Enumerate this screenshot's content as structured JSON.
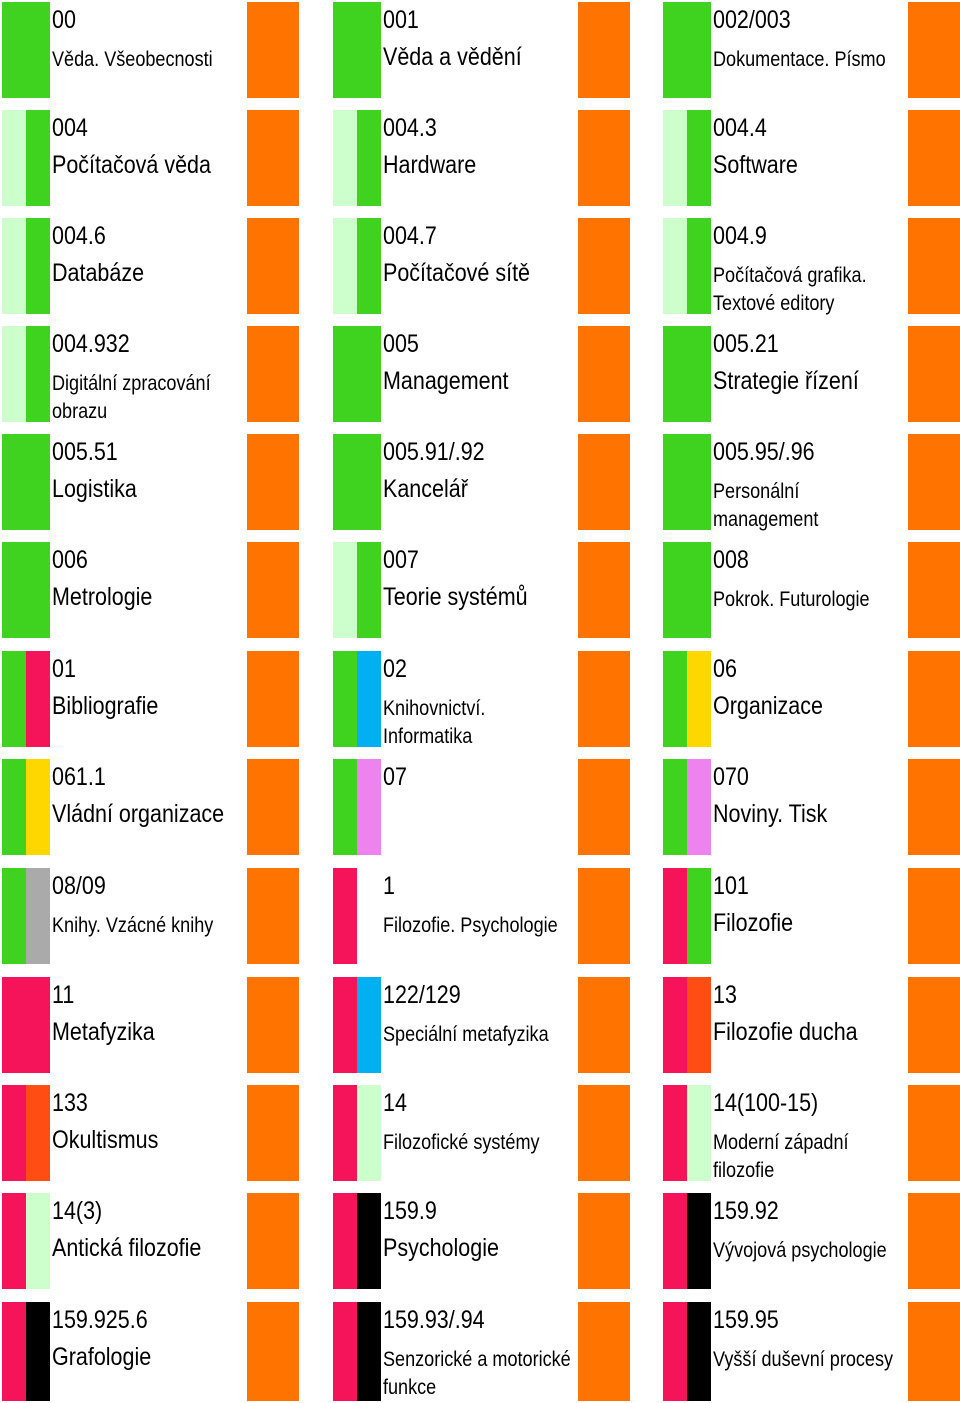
{
  "colors": {
    "green": "#3fd21e",
    "pale_green": "#ccffcc",
    "red": "#f5145a",
    "blue": "#00b0f0",
    "yellow": "#ffd700",
    "pink": "#ee82ee",
    "gray": "#aaaaaa",
    "black": "#000000",
    "orange": "#ff7300",
    "deep_orange": "#ff4d14"
  },
  "cards": [
    {
      "code": "00",
      "label": "Věda. Všeobecnosti",
      "size": "small",
      "bars": [
        "green",
        "green"
      ]
    },
    {
      "code": "001",
      "label": "Věda a vědění",
      "size": "big",
      "bars": [
        "green",
        "green"
      ]
    },
    {
      "code": "002/003",
      "label": "Dokumentace. Písmo",
      "size": "small",
      "bars": [
        "green",
        "green"
      ]
    },
    {
      "code": "004",
      "label": "Počítačová věda",
      "size": "big",
      "bars": [
        "pale_green",
        "green"
      ]
    },
    {
      "code": "004.3",
      "label": "Hardware",
      "size": "big",
      "bars": [
        "pale_green",
        "green"
      ]
    },
    {
      "code": "004.4",
      "label": "Software",
      "size": "big",
      "bars": [
        "pale_green",
        "green"
      ]
    },
    {
      "code": "004.6",
      "label": "Databáze",
      "size": "big",
      "bars": [
        "pale_green",
        "green"
      ]
    },
    {
      "code": "004.7",
      "label": "Počítačové sítě",
      "size": "big",
      "bars": [
        "pale_green",
        "green"
      ]
    },
    {
      "code": "004.9",
      "label": "Počítačová grafika. Textové editory",
      "size": "small",
      "bars": [
        "pale_green",
        "green"
      ]
    },
    {
      "code": "004.932",
      "label": "Digitální zpracování obrazu",
      "size": "small",
      "bars": [
        "pale_green",
        "green"
      ]
    },
    {
      "code": "005",
      "label": "Management",
      "size": "big",
      "bars": [
        "green",
        "green"
      ]
    },
    {
      "code": "005.21",
      "label": "Strategie řízení",
      "size": "big",
      "bars": [
        "green",
        "green"
      ]
    },
    {
      "code": "005.51",
      "label": "Logistika",
      "size": "big",
      "bars": [
        "green",
        "green"
      ]
    },
    {
      "code": "005.91/.92",
      "label": "Kancelář",
      "size": "big",
      "bars": [
        "green",
        "green"
      ]
    },
    {
      "code": "005.95/.96",
      "label": "Personální management",
      "size": "small",
      "bars": [
        "green",
        "green"
      ]
    },
    {
      "code": "006",
      "label": "Metrologie",
      "size": "big",
      "bars": [
        "green",
        "green"
      ]
    },
    {
      "code": "007",
      "label": "Teorie systémů",
      "size": "big",
      "bars": [
        "pale_green",
        "green"
      ]
    },
    {
      "code": "008",
      "label": "Pokrok. Futurologie",
      "size": "small",
      "bars": [
        "green",
        "green"
      ]
    },
    {
      "code": "01",
      "label": "Bibliografie",
      "size": "big",
      "bars": [
        "green",
        "red"
      ]
    },
    {
      "code": "02",
      "label": "Knihovnictví. Informatika",
      "size": "small",
      "bars": [
        "green",
        "blue"
      ]
    },
    {
      "code": "06",
      "label": "Organizace",
      "size": "big",
      "bars": [
        "green",
        "yellow"
      ]
    },
    {
      "code": "061.1",
      "label": "Vládní organizace",
      "size": "big",
      "bars": [
        "green",
        "yellow"
      ]
    },
    {
      "code": "07",
      "label": "",
      "size": "big",
      "bars": [
        "green",
        "pink"
      ]
    },
    {
      "code": "070",
      "label": "Noviny. Tisk",
      "size": "big",
      "bars": [
        "green",
        "pink"
      ]
    },
    {
      "code": "08/09",
      "label": "Knihy. Vzácné knihy",
      "size": "small",
      "bars": [
        "green",
        "gray"
      ]
    },
    {
      "code": "1",
      "label": "Filozofie. Psychologie",
      "size": "small",
      "bars": [
        "red",
        "none"
      ]
    },
    {
      "code": "101",
      "label": "Filozofie",
      "size": "big",
      "bars": [
        "red",
        "green"
      ]
    },
    {
      "code": "11",
      "label": "Metafyzika",
      "size": "big",
      "bars": [
        "red",
        "red"
      ]
    },
    {
      "code": "122/129",
      "label": "Speciální metafyzika",
      "size": "small",
      "bars": [
        "red",
        "blue"
      ]
    },
    {
      "code": "13",
      "label": "Filozofie ducha",
      "size": "big",
      "bars": [
        "red",
        "deep_orange"
      ]
    },
    {
      "code": "133",
      "label": "Okultismus",
      "size": "big",
      "bars": [
        "red",
        "deep_orange"
      ]
    },
    {
      "code": "14",
      "label": "Filozofické systémy",
      "size": "small",
      "bars": [
        "red",
        "pale_green"
      ]
    },
    {
      "code": "14(100-15)",
      "label": "Moderní západní filozofie",
      "size": "small",
      "bars": [
        "red",
        "pale_green"
      ]
    },
    {
      "code": "14(3)",
      "label": "Antická filozofie",
      "size": "big",
      "bars": [
        "red",
        "pale_green"
      ]
    },
    {
      "code": "159.9",
      "label": "Psychologie",
      "size": "big",
      "bars": [
        "red",
        "black"
      ]
    },
    {
      "code": "159.92",
      "label": "Vývojová psychologie",
      "size": "small",
      "bars": [
        "red",
        "black"
      ]
    },
    {
      "code": "159.925.6",
      "label": "Grafologie",
      "size": "big",
      "bars": [
        "red",
        "black"
      ]
    },
    {
      "code": "159.93/.94",
      "label": "Senzorické a motorické funkce",
      "size": "small",
      "bars": [
        "red",
        "black"
      ]
    },
    {
      "code": "159.95",
      "label": "Vyšší duševní procesy",
      "size": "small",
      "bars": [
        "red",
        "black"
      ]
    }
  ]
}
